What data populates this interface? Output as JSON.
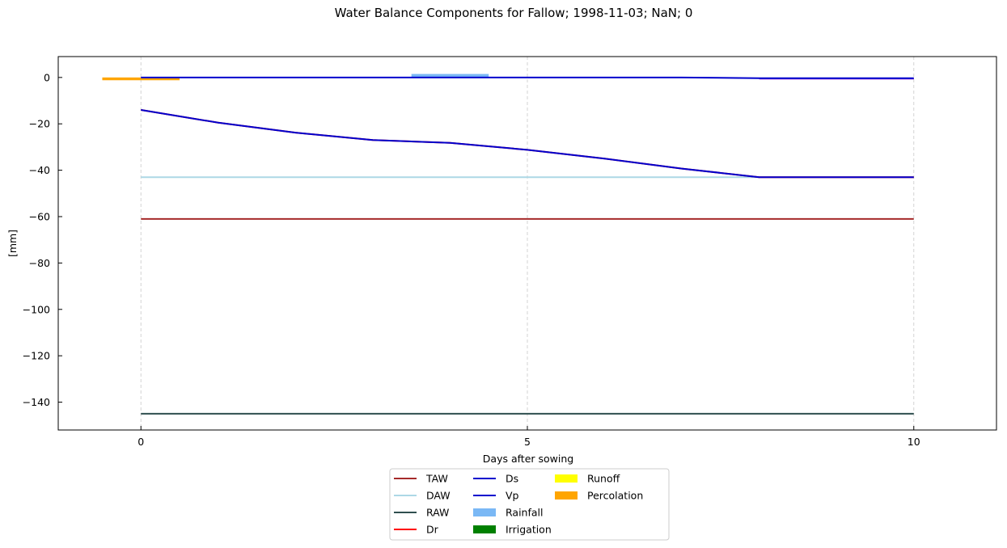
{
  "chart_data": {
    "type": "line",
    "title": "Water Balance Components for Fallow; 1998-11-03; NaN; 0",
    "xlabel": "Days after sowing",
    "ylabel": "[mm]",
    "xlim": [
      -1.07,
      11.07
    ],
    "ylim": [
      -152,
      9
    ],
    "x_ticks": [
      0,
      5,
      10
    ],
    "y_ticks": [
      0,
      -20,
      -40,
      -60,
      -80,
      -100,
      -120,
      -140
    ],
    "grid": "x-dashed",
    "legend_placement": "below-center",
    "series": [
      {
        "name": "TAW",
        "kind": "line",
        "color": "#a52a2a",
        "x": [
          0,
          1,
          2,
          3,
          4,
          5,
          6,
          7,
          8,
          9,
          10
        ],
        "y": [
          -61,
          -61,
          -61,
          -61,
          -61,
          -61,
          -61,
          -61,
          -61,
          -61,
          -61
        ]
      },
      {
        "name": "DAW",
        "kind": "line",
        "color": "#add8e6",
        "x": [
          0,
          1,
          2,
          3,
          4,
          5,
          6,
          7,
          8,
          9,
          10
        ],
        "y": [
          -43,
          -43,
          -43,
          -43,
          -43,
          -43,
          -43,
          -43,
          -43,
          -43,
          -43
        ]
      },
      {
        "name": "RAW",
        "kind": "line",
        "color": "#2f4f4f",
        "x": [
          0,
          1,
          2,
          3,
          4,
          5,
          6,
          7,
          8,
          9,
          10
        ],
        "y": [
          -145,
          -145,
          -145,
          -145,
          -145,
          -145,
          -145,
          -145,
          -145,
          -145,
          -145
        ]
      },
      {
        "name": "Dr",
        "kind": "line",
        "color": "#ff0000",
        "x": [
          0,
          1,
          2,
          3,
          4,
          5,
          6,
          7,
          8,
          9,
          10
        ],
        "y": [
          -14,
          -19.5,
          -23.8,
          -27,
          -28.2,
          -31.2,
          -35,
          -39.3,
          -43,
          -43,
          -43
        ]
      },
      {
        "name": "Ds",
        "kind": "line",
        "color": "#0000cd",
        "x": [
          0,
          1,
          2,
          3,
          4,
          5,
          6,
          7,
          8,
          9,
          10
        ],
        "y": [
          -14,
          -19.5,
          -23.8,
          -27,
          -28.2,
          -31.2,
          -35,
          -39.3,
          -43,
          -43,
          -43
        ]
      },
      {
        "name": "Vp",
        "kind": "line",
        "color": "#0000cd",
        "x": [
          0,
          1,
          2,
          3,
          4,
          5,
          6,
          7,
          8,
          9,
          10
        ],
        "y": [
          0,
          0,
          0,
          0,
          0,
          0,
          0,
          0,
          -0.3,
          -0.3,
          -0.3
        ]
      },
      {
        "name": "Rainfall",
        "kind": "bar",
        "color": "#7ab8f5",
        "x": [
          4
        ],
        "y": [
          1.5
        ]
      },
      {
        "name": "Irrigation",
        "kind": "bar",
        "color": "#008000",
        "x": [],
        "y": []
      },
      {
        "name": "Runoff",
        "kind": "bar",
        "color": "#ffff00",
        "x": [],
        "y": []
      },
      {
        "name": "Percolation",
        "kind": "bar",
        "color": "#ffa500",
        "x": [
          0
        ],
        "y": [
          -1.2
        ]
      }
    ],
    "extra_line": {
      "color": "#9400d3",
      "x": [
        8,
        10
      ],
      "y": [
        -0.5,
        -0.5
      ]
    }
  }
}
